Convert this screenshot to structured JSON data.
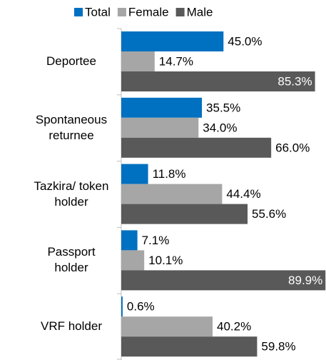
{
  "chart_data": {
    "type": "barh",
    "categories": [
      "Deportee",
      "Spontaneous returnee",
      "Tazkira/ token holder",
      "Passport holder",
      "VRF holder"
    ],
    "series": [
      {
        "name": "Total",
        "color": "#0070c0",
        "values": [
          45.0,
          35.5,
          11.8,
          7.1,
          0.6
        ],
        "value_labels": [
          "45.0%",
          "35.5%",
          "11.8%",
          "7.1%",
          "0.6%"
        ]
      },
      {
        "name": "Female",
        "color": "#a6a6a6",
        "values": [
          14.7,
          34.0,
          44.4,
          10.1,
          40.2
        ],
        "value_labels": [
          "14.7%",
          "34.0%",
          "44.4%",
          "10.1%",
          "40.2%"
        ]
      },
      {
        "name": "Male",
        "color": "#595959",
        "values": [
          85.3,
          66.0,
          55.6,
          89.9,
          59.8
        ],
        "value_labels": [
          "85.3%",
          "66.0%",
          "55.6%",
          "89.9%",
          "59.8%"
        ]
      }
    ],
    "xlim": [
      0,
      90
    ],
    "legend": "top"
  }
}
